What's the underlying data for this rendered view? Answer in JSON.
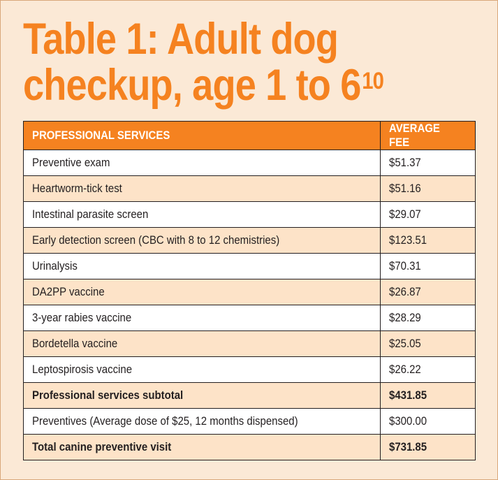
{
  "title": {
    "main": "Table 1: Adult dog checkup, age 1 to 6",
    "line1": "Table 1: Adult dog",
    "line2": "checkup, age 1 to 6",
    "superscript": "10"
  },
  "colors": {
    "accent": "#f58220",
    "background": "#fbe9d6",
    "row_shaded": "#fde3c8",
    "row_plain": "#ffffff"
  },
  "table": {
    "headers": [
      "PROFESSIONAL SERVICES",
      "AVERAGE FEE"
    ],
    "rows": [
      {
        "service": "Preventive exam",
        "fee": "$51.37"
      },
      {
        "service": "Heartworm-tick test",
        "fee": "$51.16"
      },
      {
        "service": "Intestinal parasite screen",
        "fee": "$29.07"
      },
      {
        "service": "Early detection screen (CBC with 8 to 12 chemistries)",
        "fee": "$123.51"
      },
      {
        "service": "Urinalysis",
        "fee": "$70.31"
      },
      {
        "service": "DA2PP vaccine",
        "fee": "$26.87"
      },
      {
        "service": "3-year rabies vaccine",
        "fee": "$28.29"
      },
      {
        "service": "Bordetella vaccine",
        "fee": "$25.05"
      },
      {
        "service": "Leptospirosis vaccine",
        "fee": "$26.22"
      },
      {
        "service": "Professional services subtotal",
        "fee": "$431.85"
      },
      {
        "service": "Preventives (Average dose of $25, 12 months dispensed)",
        "fee": "$300.00"
      },
      {
        "service": "Total canine preventive visit",
        "fee": "$731.85"
      }
    ]
  }
}
